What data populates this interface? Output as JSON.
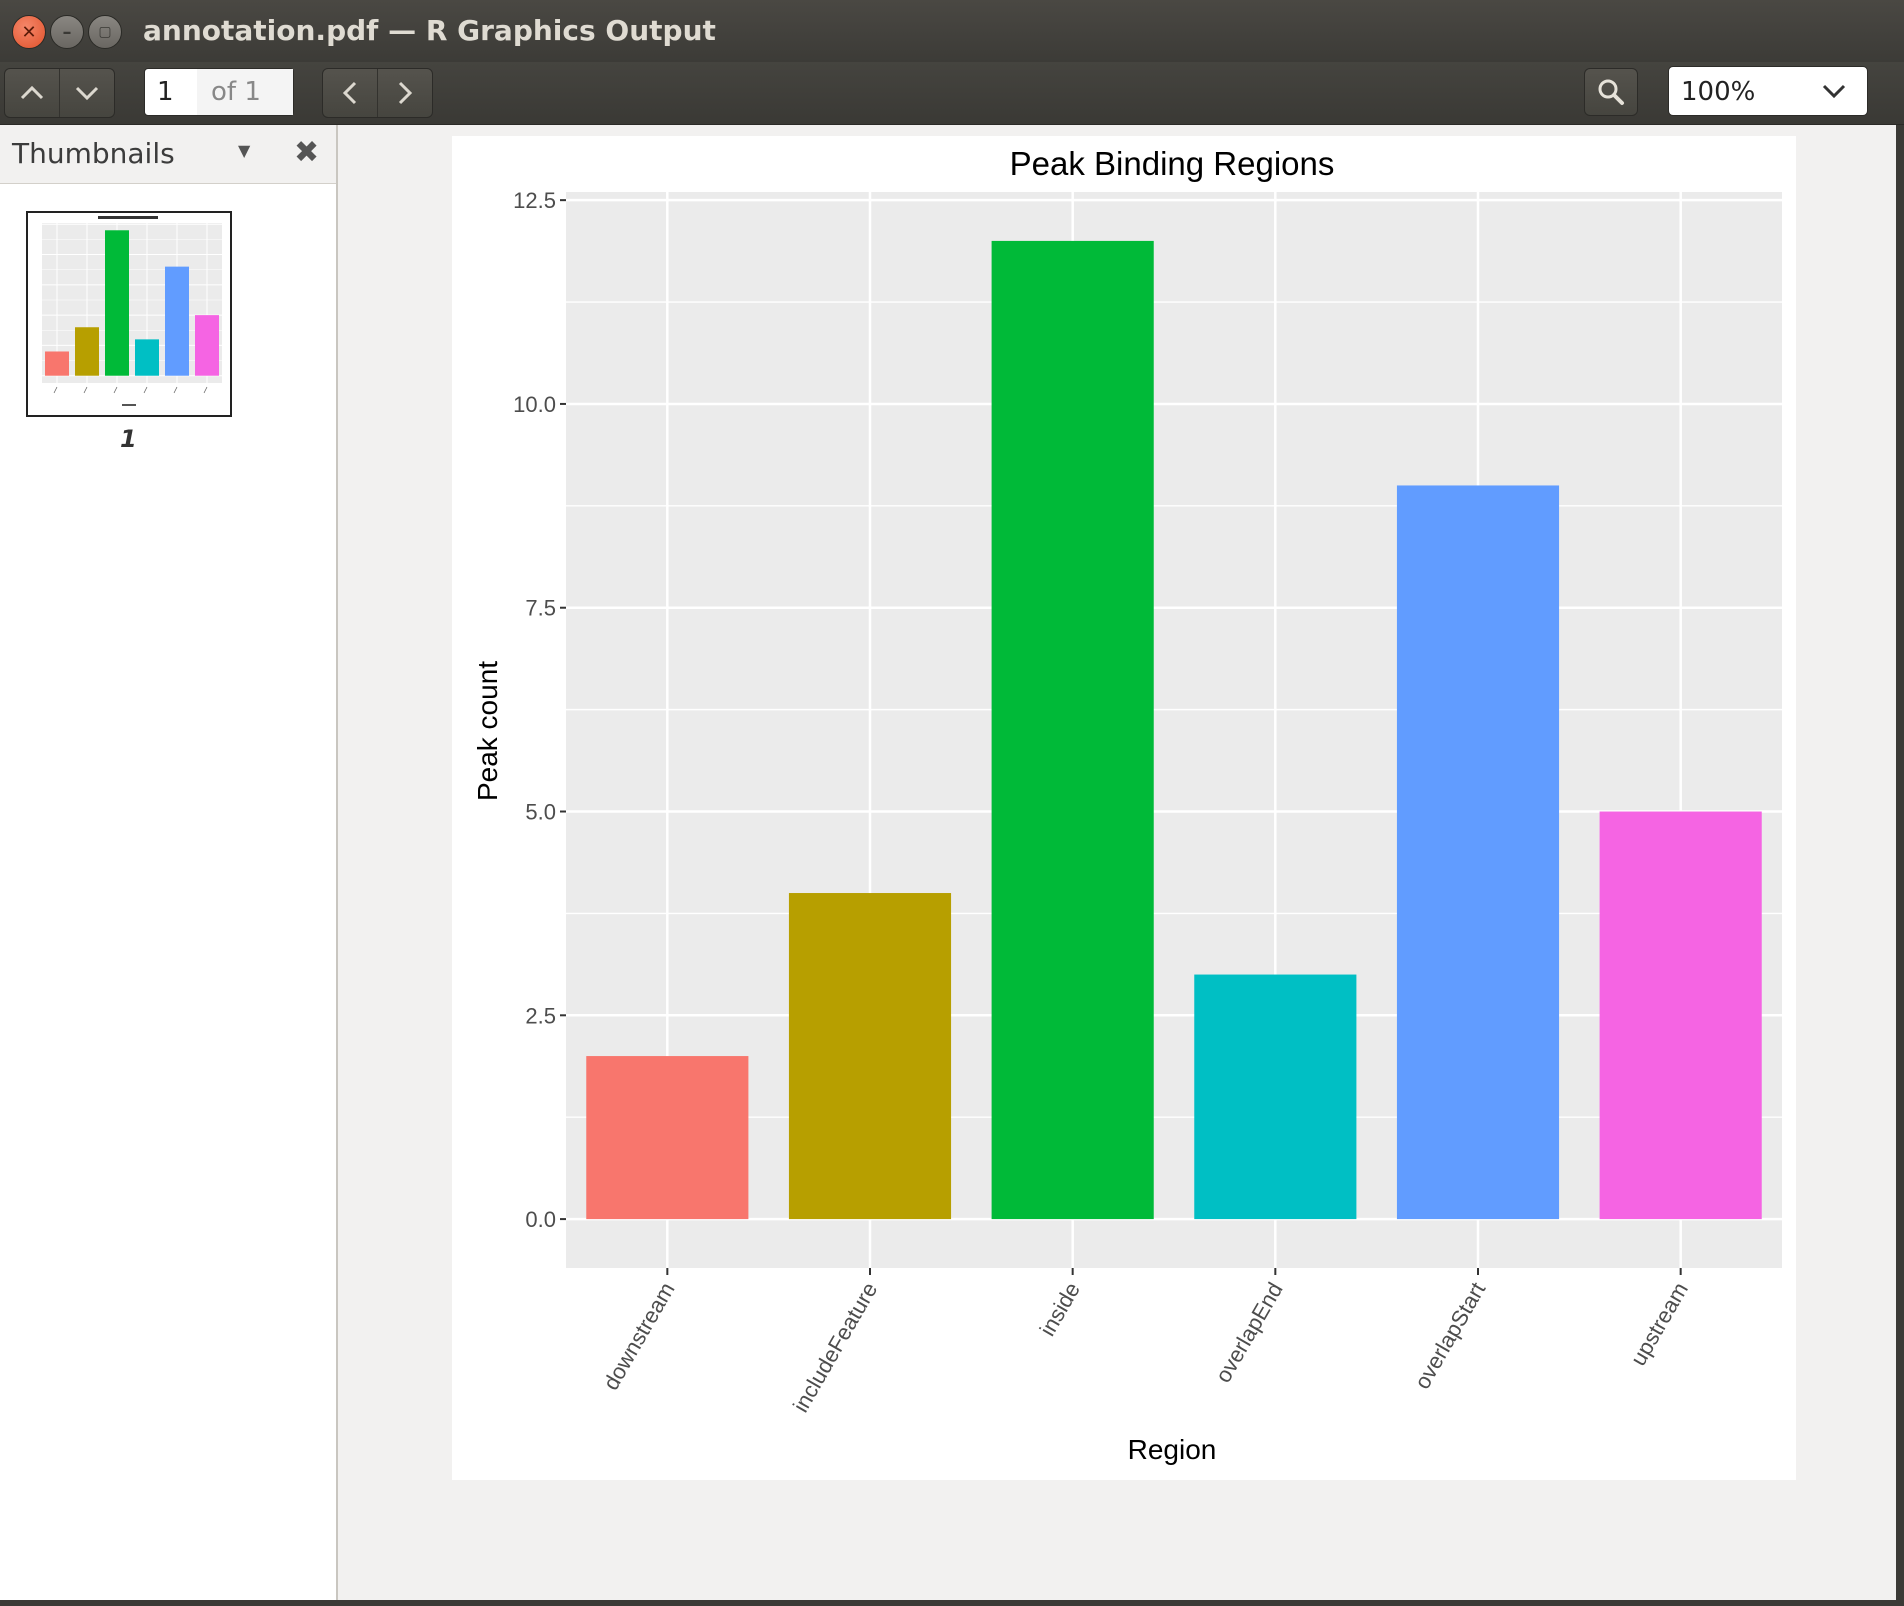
{
  "window": {
    "title": "annotation.pdf — R Graphics Output"
  },
  "toolbar": {
    "page_current": "1",
    "page_of": "of 1",
    "zoom": "100%"
  },
  "sidebar": {
    "title": "Thumbnails",
    "thumbnail_page": "1"
  },
  "colors": {
    "panel_bg": "#ebebeb",
    "grid": "#ffffff",
    "downstream": "#F8766D",
    "includeFeature": "#B79F00",
    "inside": "#00BA38",
    "overlapEnd": "#00BFC4",
    "overlapStart": "#619CFF",
    "upstream": "#F564E3"
  },
  "chart_data": {
    "type": "bar",
    "title": "Peak Binding Regions",
    "xlabel": "Region",
    "ylabel": "Peak count",
    "categories": [
      "downstream",
      "includeFeature",
      "inside",
      "overlapEnd",
      "overlapStart",
      "upstream"
    ],
    "values": [
      2,
      4,
      12,
      3,
      9,
      5
    ],
    "bar_colors": [
      "#F8766D",
      "#B79F00",
      "#00BA38",
      "#00BFC4",
      "#619CFF",
      "#F564E3"
    ],
    "y_ticks": [
      "0.0",
      "2.5",
      "5.0",
      "7.5",
      "10.0",
      "12.5"
    ],
    "ylim": [
      -0.6,
      12.6
    ],
    "grid": true,
    "legend": "none"
  }
}
